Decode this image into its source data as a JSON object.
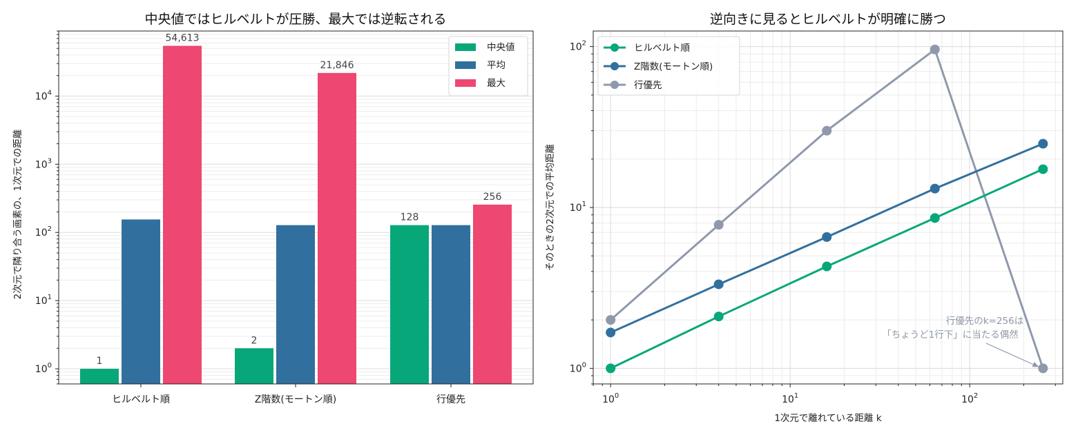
{
  "chart_data": [
    {
      "type": "bar",
      "title": "中央値ではヒルベルトが圧勝、最大では逆転される",
      "xlabel": "",
      "ylabel": "2次元で隣り合う画素の、1次元での距離",
      "yscale": "log",
      "ylim": [
        0.6,
        90000
      ],
      "categories": [
        "ヒルベルト順",
        "Z階数(モートン順)",
        "行優先"
      ],
      "series": [
        {
          "name": "中央値",
          "color": "#08a77a",
          "values": [
            1,
            2,
            128
          ],
          "labels": [
            "1",
            "2",
            "128"
          ]
        },
        {
          "name": "平均",
          "color": "#31709e",
          "values": [
            155,
            128,
            128
          ],
          "labels": [
            "",
            "",
            ""
          ]
        },
        {
          "name": "最大",
          "color": "#ee4771",
          "values": [
            54613,
            21846,
            256
          ],
          "labels": [
            "54,613",
            "21,846",
            "256"
          ]
        }
      ],
      "y_ticks": [
        {
          "base": "10",
          "exp": "0",
          "value": 1
        },
        {
          "base": "10",
          "exp": "1",
          "value": 10
        },
        {
          "base": "10",
          "exp": "2",
          "value": 100
        },
        {
          "base": "10",
          "exp": "3",
          "value": 1000
        },
        {
          "base": "10",
          "exp": "4",
          "value": 10000
        }
      ],
      "grid": true,
      "legend_position": "top-right"
    },
    {
      "type": "line",
      "title": "逆向きに見るとヒルベルトが明確に勝つ",
      "xlabel": "1次元で離れている距離 k",
      "ylabel": "そのときの2次元での平均距離",
      "xscale": "log",
      "yscale": "log",
      "xlim": [
        0.8,
        330
      ],
      "ylim": [
        0.8,
        125
      ],
      "x": [
        1,
        4,
        16,
        64,
        256
      ],
      "series": [
        {
          "name": "ヒルベルト順",
          "color": "#08a77a",
          "values": [
            1.0,
            2.1,
            4.3,
            8.6,
            17.3
          ]
        },
        {
          "name": "Z階数(モートン順)",
          "color": "#31709e",
          "values": [
            1.67,
            3.33,
            6.55,
            13.1,
            24.9
          ]
        },
        {
          "name": "行優先",
          "color": "#8f99ab",
          "values": [
            2.0,
            7.8,
            30.0,
            96.0,
            1.0
          ]
        }
      ],
      "x_ticks": [
        {
          "base": "10",
          "exp": "0",
          "value": 1
        },
        {
          "base": "10",
          "exp": "1",
          "value": 10
        },
        {
          "base": "10",
          "exp": "2",
          "value": 100
        }
      ],
      "y_ticks": [
        {
          "base": "10",
          "exp": "0",
          "value": 1
        },
        {
          "base": "10",
          "exp": "1",
          "value": 10
        },
        {
          "base": "10",
          "exp": "2",
          "value": 100
        }
      ],
      "annotation": {
        "lines": [
          "行優先のk=256は",
          "「ちょうど1行下」に当たる偶然"
        ],
        "target": [
          256,
          1.0
        ]
      },
      "grid": true,
      "legend_position": "top-left"
    }
  ]
}
